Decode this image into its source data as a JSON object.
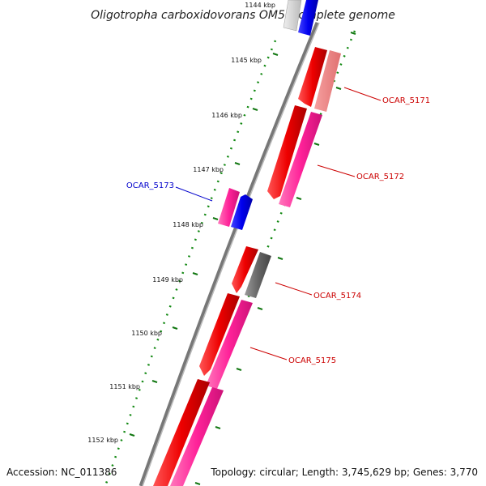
{
  "title": "Oligotropha carboxidovorans OM5, complete genome",
  "footer": {
    "accession": "Accession: NC_011386",
    "topology": "Topology: circular; Length: 3,745,629 bp; Genes: 3,770"
  },
  "ticks": [
    "1144 kbp",
    "1145 kbp",
    "1146 kbp",
    "1147 kbp",
    "1148 kbp",
    "1149 kbp",
    "1150 kbp",
    "1151 kbp",
    "1152 kbp"
  ],
  "genes": [
    {
      "label": "OCAR_5171",
      "color": "#cc0000"
    },
    {
      "label": "OCAR_5172",
      "color": "#cc0000"
    },
    {
      "label": "OCAR_5173",
      "color": "#0000cc"
    },
    {
      "label": "OCAR_5174",
      "color": "#cc0000"
    },
    {
      "label": "OCAR_5175",
      "color": "#cc0000"
    }
  ],
  "colors": {
    "cds_forward": "#ee0000",
    "cds_reverse": "#0000ee",
    "rna": "#ff3399",
    "faded_rna": "#f08080",
    "other": "#666666",
    "backbone": "#888888",
    "tick": "#118811"
  }
}
